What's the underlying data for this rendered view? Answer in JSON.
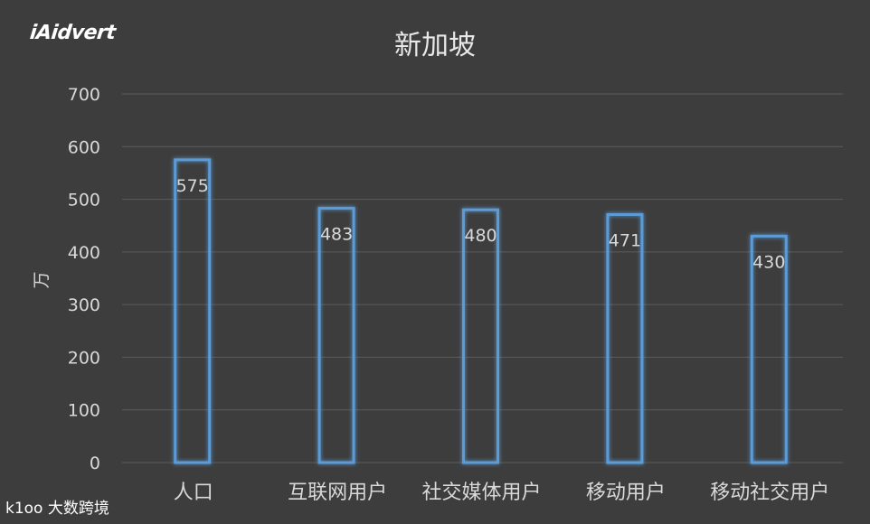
{
  "brand": {
    "logo_text": "iAidvert"
  },
  "watermark": {
    "mark": "k1oo",
    "text": "大数跨境"
  },
  "colors": {
    "background": "#3d3d3d",
    "grid": "#5c5c5c",
    "bar_stroke": "#5b9bd5",
    "text": "#d9d9d9",
    "title": "#e8e8e8"
  },
  "chart_data": {
    "type": "bar",
    "title": "新加坡",
    "xlabel": "",
    "ylabel": "万",
    "ylim": [
      0,
      700
    ],
    "yticks": [
      0,
      100,
      200,
      300,
      400,
      500,
      600,
      700
    ],
    "categories": [
      "人口",
      "互联网用户",
      "社交媒体用户",
      "移动用户",
      "移动社交用户"
    ],
    "values": [
      575,
      483,
      480,
      471,
      430
    ],
    "grid": true,
    "legend": false,
    "bar_style": "outlined",
    "data_labels": true
  }
}
